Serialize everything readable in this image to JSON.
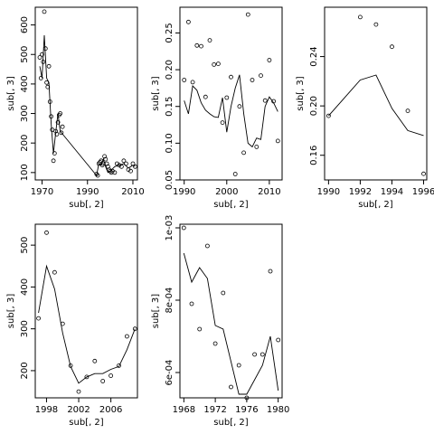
{
  "chart_data": [
    {
      "type": "scatter",
      "xlabel": "sub[, 2]",
      "ylabel": "sub[, 3]",
      "xlim": [
        1967,
        2012
      ],
      "ylim": [
        75,
        660
      ],
      "xticks": [
        1970,
        1990,
        2010
      ],
      "yticks": [
        100,
        200,
        300,
        400,
        500,
        600
      ],
      "ytick_labels": [
        "100",
        "200",
        "300",
        "400",
        "500",
        "600"
      ],
      "points": [
        [
          1969,
          490
        ],
        [
          1969.5,
          420
        ],
        [
          1970,
          500
        ],
        [
          1970.5,
          475
        ],
        [
          1971,
          645
        ],
        [
          1971.5,
          520
        ],
        [
          1972,
          405
        ],
        [
          1972.5,
          390
        ],
        [
          1973,
          460
        ],
        [
          1973.5,
          340
        ],
        [
          1974,
          290
        ],
        [
          1974.5,
          245
        ],
        [
          1975,
          140
        ],
        [
          1975.5,
          165
        ],
        [
          1976,
          240
        ],
        [
          1976.5,
          230
        ],
        [
          1977,
          270
        ],
        [
          1977.5,
          295
        ],
        [
          1978,
          300
        ],
        [
          1978.5,
          235
        ],
        [
          1979,
          255
        ],
        [
          1994,
          95
        ],
        [
          1994.5,
          90
        ],
        [
          1995,
          130
        ],
        [
          1995.5,
          135
        ],
        [
          1996,
          140
        ],
        [
          1996.5,
          125
        ],
        [
          1997,
          130
        ],
        [
          1997.5,
          155
        ],
        [
          1998,
          145
        ],
        [
          1998.5,
          130
        ],
        [
          1999,
          120
        ],
        [
          1999.5,
          110
        ],
        [
          2000,
          105
        ],
        [
          2000.5,
          100
        ],
        [
          2001,
          105
        ],
        [
          2002,
          100
        ],
        [
          2003,
          130
        ],
        [
          2004,
          125
        ],
        [
          2005,
          120
        ],
        [
          2006,
          140
        ],
        [
          2007,
          130
        ],
        [
          2008,
          110
        ],
        [
          2009,
          105
        ],
        [
          2010,
          130
        ],
        [
          2011,
          120
        ]
      ],
      "line": [
        [
          1969,
          460
        ],
        [
          1970,
          420
        ],
        [
          1971,
          565
        ],
        [
          1972,
          420
        ],
        [
          1973,
          405
        ],
        [
          1974,
          265
        ],
        [
          1975,
          165
        ],
        [
          1976,
          235
        ],
        [
          1977,
          300
        ],
        [
          1978,
          240
        ],
        [
          1994,
          90
        ],
        [
          1995,
          130
        ],
        [
          1996,
          125
        ],
        [
          1997,
          145
        ],
        [
          1998,
          120
        ],
        [
          1999,
          100
        ],
        [
          2000,
          105
        ],
        [
          2002,
          120
        ],
        [
          2004,
          125
        ],
        [
          2006,
          130
        ],
        [
          2008,
          115
        ],
        [
          2010,
          125
        ],
        [
          2011,
          120
        ]
      ]
    },
    {
      "type": "scatter",
      "xlabel": "sub[, 2]",
      "ylabel": "sub[, 3]",
      "xlim": [
        1989,
        2013
      ],
      "ylim": [
        0.05,
        0.285
      ],
      "xticks": [
        1990,
        2000,
        2010
      ],
      "yticks": [
        0.05,
        0.1,
        0.15,
        0.2,
        0.25
      ],
      "ytick_labels": [
        "0.05",
        "0.10",
        "0.15",
        "0.20",
        "0.25"
      ],
      "points": [
        [
          1990,
          0.186
        ],
        [
          1991,
          0.265
        ],
        [
          1992,
          0.183
        ],
        [
          1993,
          0.233
        ],
        [
          1994,
          0.232
        ],
        [
          1995,
          0.163
        ],
        [
          1996,
          0.24
        ],
        [
          1997,
          0.207
        ],
        [
          1998,
          0.208
        ],
        [
          1999,
          0.128
        ],
        [
          2000,
          0.162
        ],
        [
          2001,
          0.19
        ],
        [
          2002,
          0.058
        ],
        [
          2003,
          0.15
        ],
        [
          2004,
          0.087
        ],
        [
          2005,
          0.275
        ],
        [
          2006,
          0.186
        ],
        [
          2007,
          0.095
        ],
        [
          2008,
          0.192
        ],
        [
          2009,
          0.158
        ],
        [
          2010,
          0.213
        ],
        [
          2011,
          0.157
        ],
        [
          2012,
          0.103
        ]
      ],
      "line": [
        [
          1990,
          0.158
        ],
        [
          1991,
          0.14
        ],
        [
          1992,
          0.178
        ],
        [
          1993,
          0.172
        ],
        [
          1994,
          0.155
        ],
        [
          1995,
          0.145
        ],
        [
          1996,
          0.14
        ],
        [
          1997,
          0.136
        ],
        [
          1998,
          0.135
        ],
        [
          1999,
          0.162
        ],
        [
          2000,
          0.115
        ],
        [
          2001,
          0.15
        ],
        [
          2002,
          0.175
        ],
        [
          2003,
          0.193
        ],
        [
          2004,
          0.14
        ],
        [
          2005,
          0.1
        ],
        [
          2006,
          0.095
        ],
        [
          2007,
          0.107
        ],
        [
          2008,
          0.105
        ],
        [
          2009,
          0.15
        ],
        [
          2010,
          0.163
        ],
        [
          2011,
          0.155
        ],
        [
          2012,
          0.143
        ]
      ]
    },
    {
      "type": "scatter",
      "xlabel": "sub[, 2]",
      "ylabel": "sub[, 3]",
      "xlim": [
        1989.75,
        1996.2
      ],
      "ylim": [
        0.14,
        0.28
      ],
      "xticks": [
        1990,
        1992,
        1994,
        1996
      ],
      "yticks": [
        0.16,
        0.2,
        0.24
      ],
      "ytick_labels": [
        "0.16",
        "0.20",
        "0.24"
      ],
      "points": [
        [
          1990,
          0.192
        ],
        [
          1992,
          0.272
        ],
        [
          1993,
          0.266
        ],
        [
          1994,
          0.248
        ],
        [
          1995,
          0.196
        ],
        [
          1996,
          0.145
        ]
      ],
      "line": [
        [
          1990,
          0.192
        ],
        [
          1992,
          0.221
        ],
        [
          1993,
          0.225
        ],
        [
          1994,
          0.198
        ],
        [
          1995,
          0.18
        ],
        [
          1996,
          0.176
        ]
      ]
    },
    {
      "type": "scatter",
      "xlabel": "sub[, 2]",
      "ylabel": "sub[, 3]",
      "xlim": [
        1996.6,
        2009.3
      ],
      "ylim": [
        135,
        550
      ],
      "xticks": [
        1998,
        2002,
        2006
      ],
      "yticks": [
        200,
        300,
        400,
        500
      ],
      "ytick_labels": [
        "200",
        "300",
        "400",
        "500"
      ],
      "points": [
        [
          1997,
          325
        ],
        [
          1998,
          530
        ],
        [
          1999,
          435
        ],
        [
          2000,
          312
        ],
        [
          2001,
          212
        ],
        [
          2002,
          150
        ],
        [
          2003,
          185
        ],
        [
          2004,
          223
        ],
        [
          2005,
          175
        ],
        [
          2006,
          188
        ],
        [
          2007,
          212
        ],
        [
          2008,
          282
        ],
        [
          2009,
          300
        ]
      ],
      "line": [
        [
          1997,
          338
        ],
        [
          1998,
          450
        ],
        [
          1999,
          395
        ],
        [
          2000,
          290
        ],
        [
          2001,
          210
        ],
        [
          2002,
          170
        ],
        [
          2003,
          185
        ],
        [
          2004,
          193
        ],
        [
          2005,
          193
        ],
        [
          2006,
          203
        ],
        [
          2007,
          210
        ],
        [
          2008,
          250
        ],
        [
          2009,
          300
        ]
      ]
    },
    {
      "type": "scatter",
      "xlabel": "sub[, 2]",
      "ylabel": "sub[, 3]",
      "xlim": [
        1967.5,
        1980.5
      ],
      "ylim": [
        0.00053,
        0.00101
      ],
      "xticks": [
        1968,
        1972,
        1976,
        1980
      ],
      "yticks": [
        0.0006,
        0.0008,
        0.001
      ],
      "ytick_labels": [
        "6e-04",
        "8e-04",
        "1e-03"
      ],
      "points": [
        [
          1968,
          0.001
        ],
        [
          1969,
          0.00079
        ],
        [
          1970,
          0.00072
        ],
        [
          1971,
          0.00095
        ],
        [
          1972,
          0.00068
        ],
        [
          1973,
          0.00082
        ],
        [
          1974,
          0.00056
        ],
        [
          1975,
          0.00062
        ],
        [
          1976,
          0.00053
        ],
        [
          1977,
          0.00065
        ],
        [
          1978,
          0.00065
        ],
        [
          1979,
          0.00088
        ],
        [
          1980,
          0.00069
        ]
      ],
      "line": [
        [
          1968,
          0.00093
        ],
        [
          1969,
          0.00085
        ],
        [
          1970,
          0.00089
        ],
        [
          1971,
          0.00086
        ],
        [
          1972,
          0.00073
        ],
        [
          1973,
          0.00072
        ],
        [
          1974,
          0.00063
        ],
        [
          1975,
          0.00054
        ],
        [
          1976,
          0.00054
        ],
        [
          1977,
          0.00058
        ],
        [
          1978,
          0.00062
        ],
        [
          1979,
          0.0007
        ],
        [
          1980,
          0.00055
        ]
      ]
    }
  ]
}
